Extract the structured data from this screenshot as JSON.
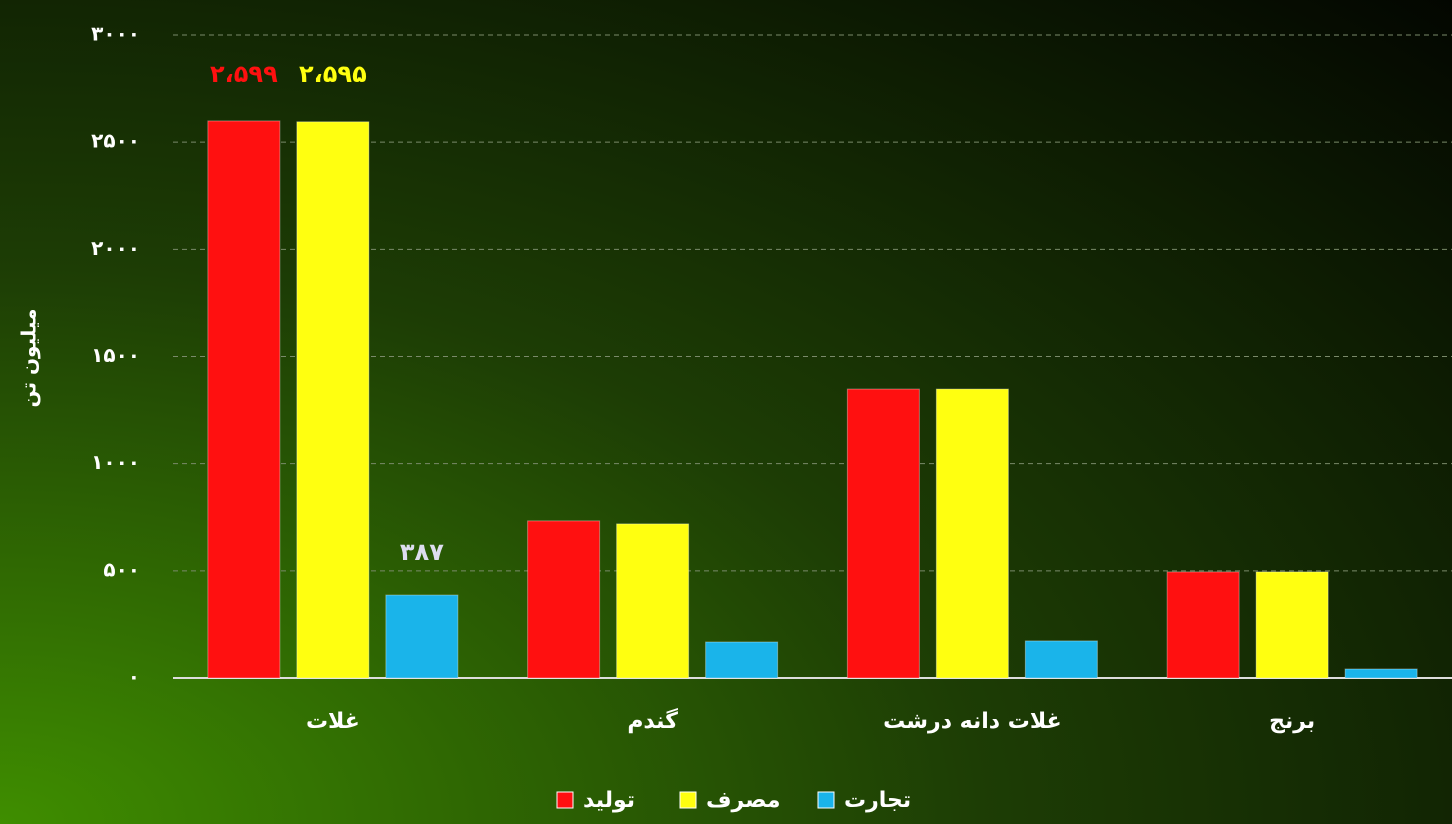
{
  "chart_data": {
    "type": "bar",
    "y_label": "میلیون تن",
    "categories": [
      "غلات",
      "گندم",
      "غلات دانه درشت",
      "برنج"
    ],
    "series": [
      {
        "name": "تولید",
        "color": "#ff1010",
        "values": [
          2599,
          733,
          1348,
          495
        ],
        "value_labels": [
          "۲،۵۹۹",
          null,
          null,
          null
        ]
      },
      {
        "name": "مصرف",
        "color": "#ffff10",
        "values": [
          2595,
          719,
          1348,
          495
        ],
        "value_labels": [
          "۲،۵۹۵",
          null,
          null,
          null
        ]
      },
      {
        "name": "تجارت",
        "color": "#1ab4ea",
        "values": [
          387,
          168,
          173,
          42
        ],
        "value_labels": [
          "۳۸۷",
          null,
          null,
          null
        ]
      }
    ],
    "ylim": [
      0,
      3000
    ],
    "yticks": [
      {
        "value": 0,
        "label": "۰"
      },
      {
        "value": 500,
        "label": "۵۰۰"
      },
      {
        "value": 1000,
        "label": "۱۰۰۰"
      },
      {
        "value": 1500,
        "label": "۱۵۰۰"
      },
      {
        "value": 2000,
        "label": "۲۰۰۰"
      },
      {
        "value": 2500,
        "label": "۲۵۰۰"
      },
      {
        "value": 3000,
        "label": "۳۰۰۰"
      }
    ],
    "grid": true,
    "legend": "bottom"
  }
}
